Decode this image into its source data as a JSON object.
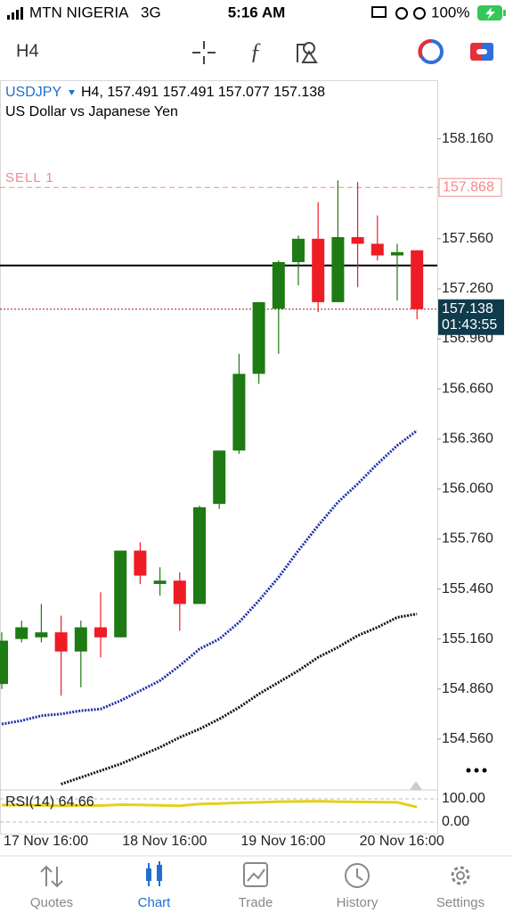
{
  "status_bar": {
    "carrier": "MTN NIGERIA",
    "network": "3G",
    "time": "5:16 AM",
    "battery": "100%"
  },
  "toolbar": {
    "timeframe": "H4"
  },
  "chart_data": {
    "type": "candlestick",
    "symbol": "USDJPY",
    "title": "H4, 157.491 157.491 157.077 157.138",
    "subtitle": "US Dollar vs Japanese Yen",
    "categories": [
      "17 Nov 16:00",
      null,
      null,
      null,
      null,
      null,
      "18 Nov 16:00",
      null,
      null,
      null,
      null,
      null,
      "19 Nov 16:00",
      null,
      null,
      null,
      null,
      null,
      "20 Nov 16:00",
      null,
      null,
      null
    ],
    "open": [
      154.89,
      155.16,
      155.17,
      155.2,
      155.085,
      155.23,
      155.17,
      155.69,
      155.49,
      155.51,
      155.37,
      155.97,
      156.29,
      156.75,
      157.14,
      157.42,
      157.56,
      157.18,
      157.57,
      157.53,
      157.46,
      157.491
    ],
    "high": [
      155.2,
      155.27,
      155.37,
      155.3,
      155.27,
      155.44,
      155.69,
      155.74,
      155.59,
      155.56,
      155.96,
      156.29,
      156.87,
      157.18,
      157.43,
      157.58,
      157.78,
      157.91,
      157.9,
      157.7,
      157.53,
      157.491
    ],
    "low": [
      154.86,
      155.14,
      155.14,
      154.82,
      154.87,
      155.05,
      155.17,
      155.49,
      155.42,
      155.21,
      155.37,
      155.94,
      156.27,
      156.69,
      156.87,
      157.28,
      157.12,
      157.18,
      157.27,
      157.43,
      157.19,
      157.077
    ],
    "close": [
      155.15,
      155.23,
      155.2,
      155.085,
      155.23,
      155.17,
      155.69,
      155.54,
      155.51,
      155.37,
      155.95,
      156.29,
      156.75,
      157.18,
      157.42,
      157.56,
      157.18,
      157.57,
      157.53,
      157.46,
      157.48,
      157.138
    ],
    "colors": {
      "up": "#1e7a12",
      "down": "#ee1c25"
    },
    "overlays": [
      {
        "color": "#1c2fa8",
        "values": [
          154.65,
          154.67,
          154.7,
          154.71,
          154.73,
          154.74,
          154.79,
          154.85,
          154.91,
          155.0,
          155.1,
          155.16,
          155.26,
          155.39,
          155.53,
          155.69,
          155.84,
          155.98,
          156.09,
          156.21,
          156.32,
          156.41
        ]
      },
      {
        "color": "#111111",
        "values": [
          null,
          null,
          null,
          154.29,
          154.33,
          154.37,
          154.41,
          154.46,
          154.51,
          154.57,
          154.62,
          154.68,
          154.75,
          154.83,
          154.9,
          154.97,
          155.05,
          155.11,
          155.18,
          155.23,
          155.29,
          155.31
        ]
      }
    ],
    "ylim": [
      154.26,
      158.5
    ],
    "yticks": [
      {
        "value": 154.56,
        "label": "154.560"
      },
      {
        "value": 154.86,
        "label": "154.860"
      },
      {
        "value": 155.16,
        "label": "155.160"
      },
      {
        "value": 155.46,
        "label": "155.460"
      },
      {
        "value": 155.76,
        "label": "155.760"
      },
      {
        "value": 156.06,
        "label": "156.060"
      },
      {
        "value": 156.36,
        "label": "156.360"
      },
      {
        "value": 156.66,
        "label": "156.660"
      },
      {
        "value": 156.96,
        "label": "156.960"
      },
      {
        "value": 157.26,
        "label": "157.260"
      },
      {
        "value": 157.56,
        "label": "157.560"
      },
      {
        "value": 158.16,
        "label": "158.160"
      }
    ],
    "levels": [
      {
        "label": "SELL 1",
        "value": 157.868,
        "color": "#f08a8a"
      },
      {
        "value": 157.4,
        "color": "#000000"
      }
    ],
    "bid": 157.138,
    "countdown": "01:43:55",
    "rsi": {
      "label": "RSI(14) 64.66",
      "color": "#e6cf1c",
      "values": [
        73,
        73,
        72,
        70,
        72,
        71,
        75,
        74,
        72,
        70,
        78,
        80,
        83,
        85,
        88,
        89,
        90,
        88,
        87,
        86,
        85,
        64.66
      ],
      "ylim": [
        0,
        100
      ],
      "yticks": [
        {
          "value": 100,
          "label": "100.00"
        },
        {
          "value": 0,
          "label": "0.00"
        }
      ]
    }
  },
  "tab_bar": {
    "tabs": [
      "Quotes",
      "Chart",
      "Trade",
      "History",
      "Settings"
    ],
    "active": 1
  }
}
